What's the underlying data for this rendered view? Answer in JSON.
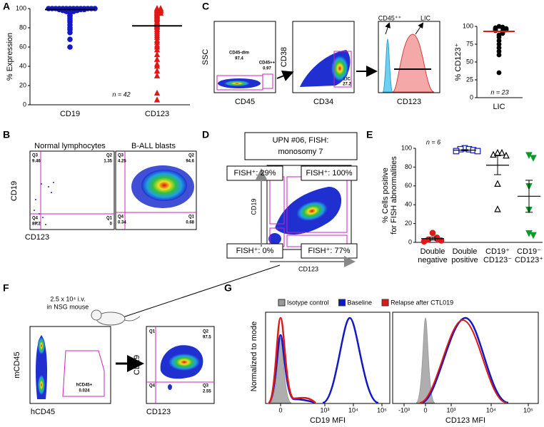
{
  "panel_labels": [
    "A",
    "B",
    "C",
    "D",
    "E",
    "F",
    "G"
  ],
  "chart_data": [
    {
      "type": "dot",
      "ylabel": "% Expression",
      "ylim": [
        0,
        100
      ],
      "yticks": [
        0,
        20,
        40,
        60,
        80,
        100
      ],
      "annotation": "n = 42",
      "groups": [
        {
          "label": "CD19",
          "color": "#1018c8",
          "marker": "circle",
          "filled": true,
          "line": 99,
          "values": [
            100,
            100,
            100,
            100,
            100,
            100,
            100,
            100,
            100,
            100,
            100,
            100,
            100,
            100,
            99,
            99,
            99,
            99,
            99,
            99,
            99,
            99,
            98,
            98,
            98,
            98,
            98,
            97,
            97,
            97,
            95,
            93,
            92,
            90,
            88,
            86,
            83,
            80,
            78,
            75,
            68,
            60
          ]
        },
        {
          "label": "CD123",
          "color": "#e01818",
          "marker": "triangle-up",
          "filled": true,
          "line": 82,
          "values": [
            100,
            100,
            99,
            99,
            98,
            98,
            97,
            97,
            96,
            95,
            95,
            94,
            93,
            92,
            91,
            90,
            89,
            88,
            86,
            85,
            83,
            82,
            81,
            80,
            78,
            76,
            74,
            72,
            70,
            67,
            65,
            62,
            60,
            57,
            52,
            47,
            42,
            40,
            35,
            30,
            12,
            5
          ]
        }
      ]
    },
    {
      "type": "dot",
      "ylabel": "% CD123⁺",
      "ylim": [
        0,
        100
      ],
      "yticks": [
        0,
        25,
        50,
        75,
        100
      ],
      "annotation": "n = 23",
      "line_color": "#e01818",
      "groups": [
        {
          "label": "LIC",
          "color": "#000000",
          "marker": "circle",
          "filled": true,
          "line": 93,
          "values": [
            100,
            99,
            98,
            98,
            97,
            97,
            96,
            96,
            95,
            95,
            94,
            93,
            92,
            91,
            90,
            88,
            85,
            80,
            75,
            70,
            65,
            60,
            35
          ]
        }
      ]
    },
    {
      "type": "dot",
      "ylabel": [
        "% Cells positive",
        "for FISH abnormalities"
      ],
      "ylim": [
        0,
        100
      ],
      "yticks": [
        0,
        20,
        40,
        60,
        80,
        100
      ],
      "annotation": "n = 6",
      "groups": [
        {
          "label": [
            "Double",
            "negative"
          ],
          "color": "#e01818",
          "marker": "circle",
          "filled": true,
          "mean": 4,
          "sem": 1.5,
          "values": [
            10,
            5,
            4,
            3,
            2,
            1
          ]
        },
        {
          "label": [
            "Double",
            "positive"
          ],
          "color": "#1018c8",
          "marker": "square",
          "filled": false,
          "mean": 98,
          "sem": 0.5,
          "values": [
            100,
            99,
            99,
            98,
            97,
            97
          ]
        },
        {
          "label": [
            "CD19⁺",
            "CD123⁻"
          ],
          "color": "#000000",
          "marker": "triangle-up",
          "filled": false,
          "mean": 82,
          "sem": 10,
          "values": [
            95,
            95,
            93,
            92,
            62,
            35
          ]
        },
        {
          "label": [
            "CD19⁻",
            "CD123⁺"
          ],
          "color": "#0a9a2a",
          "marker": "triangle-down",
          "filled": true,
          "mean": 49,
          "sem": 17,
          "values": [
            93,
            90,
            60,
            35,
            10,
            8
          ]
        }
      ]
    }
  ],
  "panel_b": {
    "titles": [
      "Normal lymphocytes",
      "B-ALL blasts"
    ],
    "ylabel": "CD19",
    "xlabel": "CD123",
    "plots": [
      {
        "quadrants": [
          {
            "name": "Q3",
            "value": 9.46
          },
          {
            "name": "Q2",
            "value": 1.35
          },
          {
            "name": "Q4",
            "value": 89.2
          },
          {
            "name": "Q1",
            "value": 0
          }
        ]
      },
      {
        "quadrants": [
          {
            "name": "Q3",
            "value": 4.25
          },
          {
            "name": "Q2",
            "value": 94.6
          },
          {
            "name": "Q4",
            "value": 0.34
          },
          {
            "name": "Q1",
            "value": 0.68
          }
        ]
      }
    ]
  },
  "panel_c": {
    "plot1": {
      "ylabel": "SSC",
      "xlabel": "CD45",
      "gates": [
        {
          "name": "CD45-dim",
          "value": 97.4
        },
        {
          "name": "CD45++",
          "value": 0.97
        }
      ]
    },
    "plot2": {
      "ylabel": "CD38",
      "xlabel": "CD34",
      "gates": [
        {
          "name": "LIC",
          "value": 27.2
        }
      ]
    },
    "plot3": {
      "xlabel": "CD123",
      "labels": [
        "CD45⁺⁺",
        "LIC"
      ]
    }
  },
  "panel_d": {
    "title_lines": [
      "UPN #06, FISH:",
      "monosomy 7"
    ],
    "ylabel": "CD19",
    "xlabel": "CD123",
    "boxes": [
      "FISH⁺: 29%",
      "FISH⁺: 100%",
      "FISH⁺: 0%",
      "FISH⁺: 77%"
    ]
  },
  "panel_f": {
    "injection": [
      "2.5 x 10⁴ i.v.",
      "in NSG mouse"
    ],
    "plot1": {
      "ylabel": "mCD45",
      "xlabel": "hCD45",
      "gate": {
        "name": "hCD45+",
        "value": 0.024
      }
    },
    "plot2": {
      "ylabel": "CD19",
      "xlabel": "CD123",
      "quadrants": [
        {
          "name": "Q1"
        },
        {
          "name": "Q2",
          "value": 97.5
        },
        {
          "name": "Q4"
        },
        {
          "name": "Q3",
          "value": 2.55
        }
      ]
    }
  },
  "panel_g": {
    "ylabel": "Normalized to mode",
    "legend": [
      {
        "name": "Isotype control",
        "color": "#9a9a9a"
      },
      {
        "name": "Baseline",
        "color": "#1018c8"
      },
      {
        "name": "Relapse after CTL019",
        "color": "#e01818"
      }
    ],
    "plots": [
      {
        "xlabel": "CD19 MFI",
        "xticks": [
          "0",
          "10³",
          "10⁴",
          "10⁵"
        ]
      },
      {
        "xlabel": "CD123 MFI",
        "xticks": [
          "-10³",
          "0",
          "10³",
          "10⁴",
          "10⁵"
        ]
      }
    ]
  }
}
